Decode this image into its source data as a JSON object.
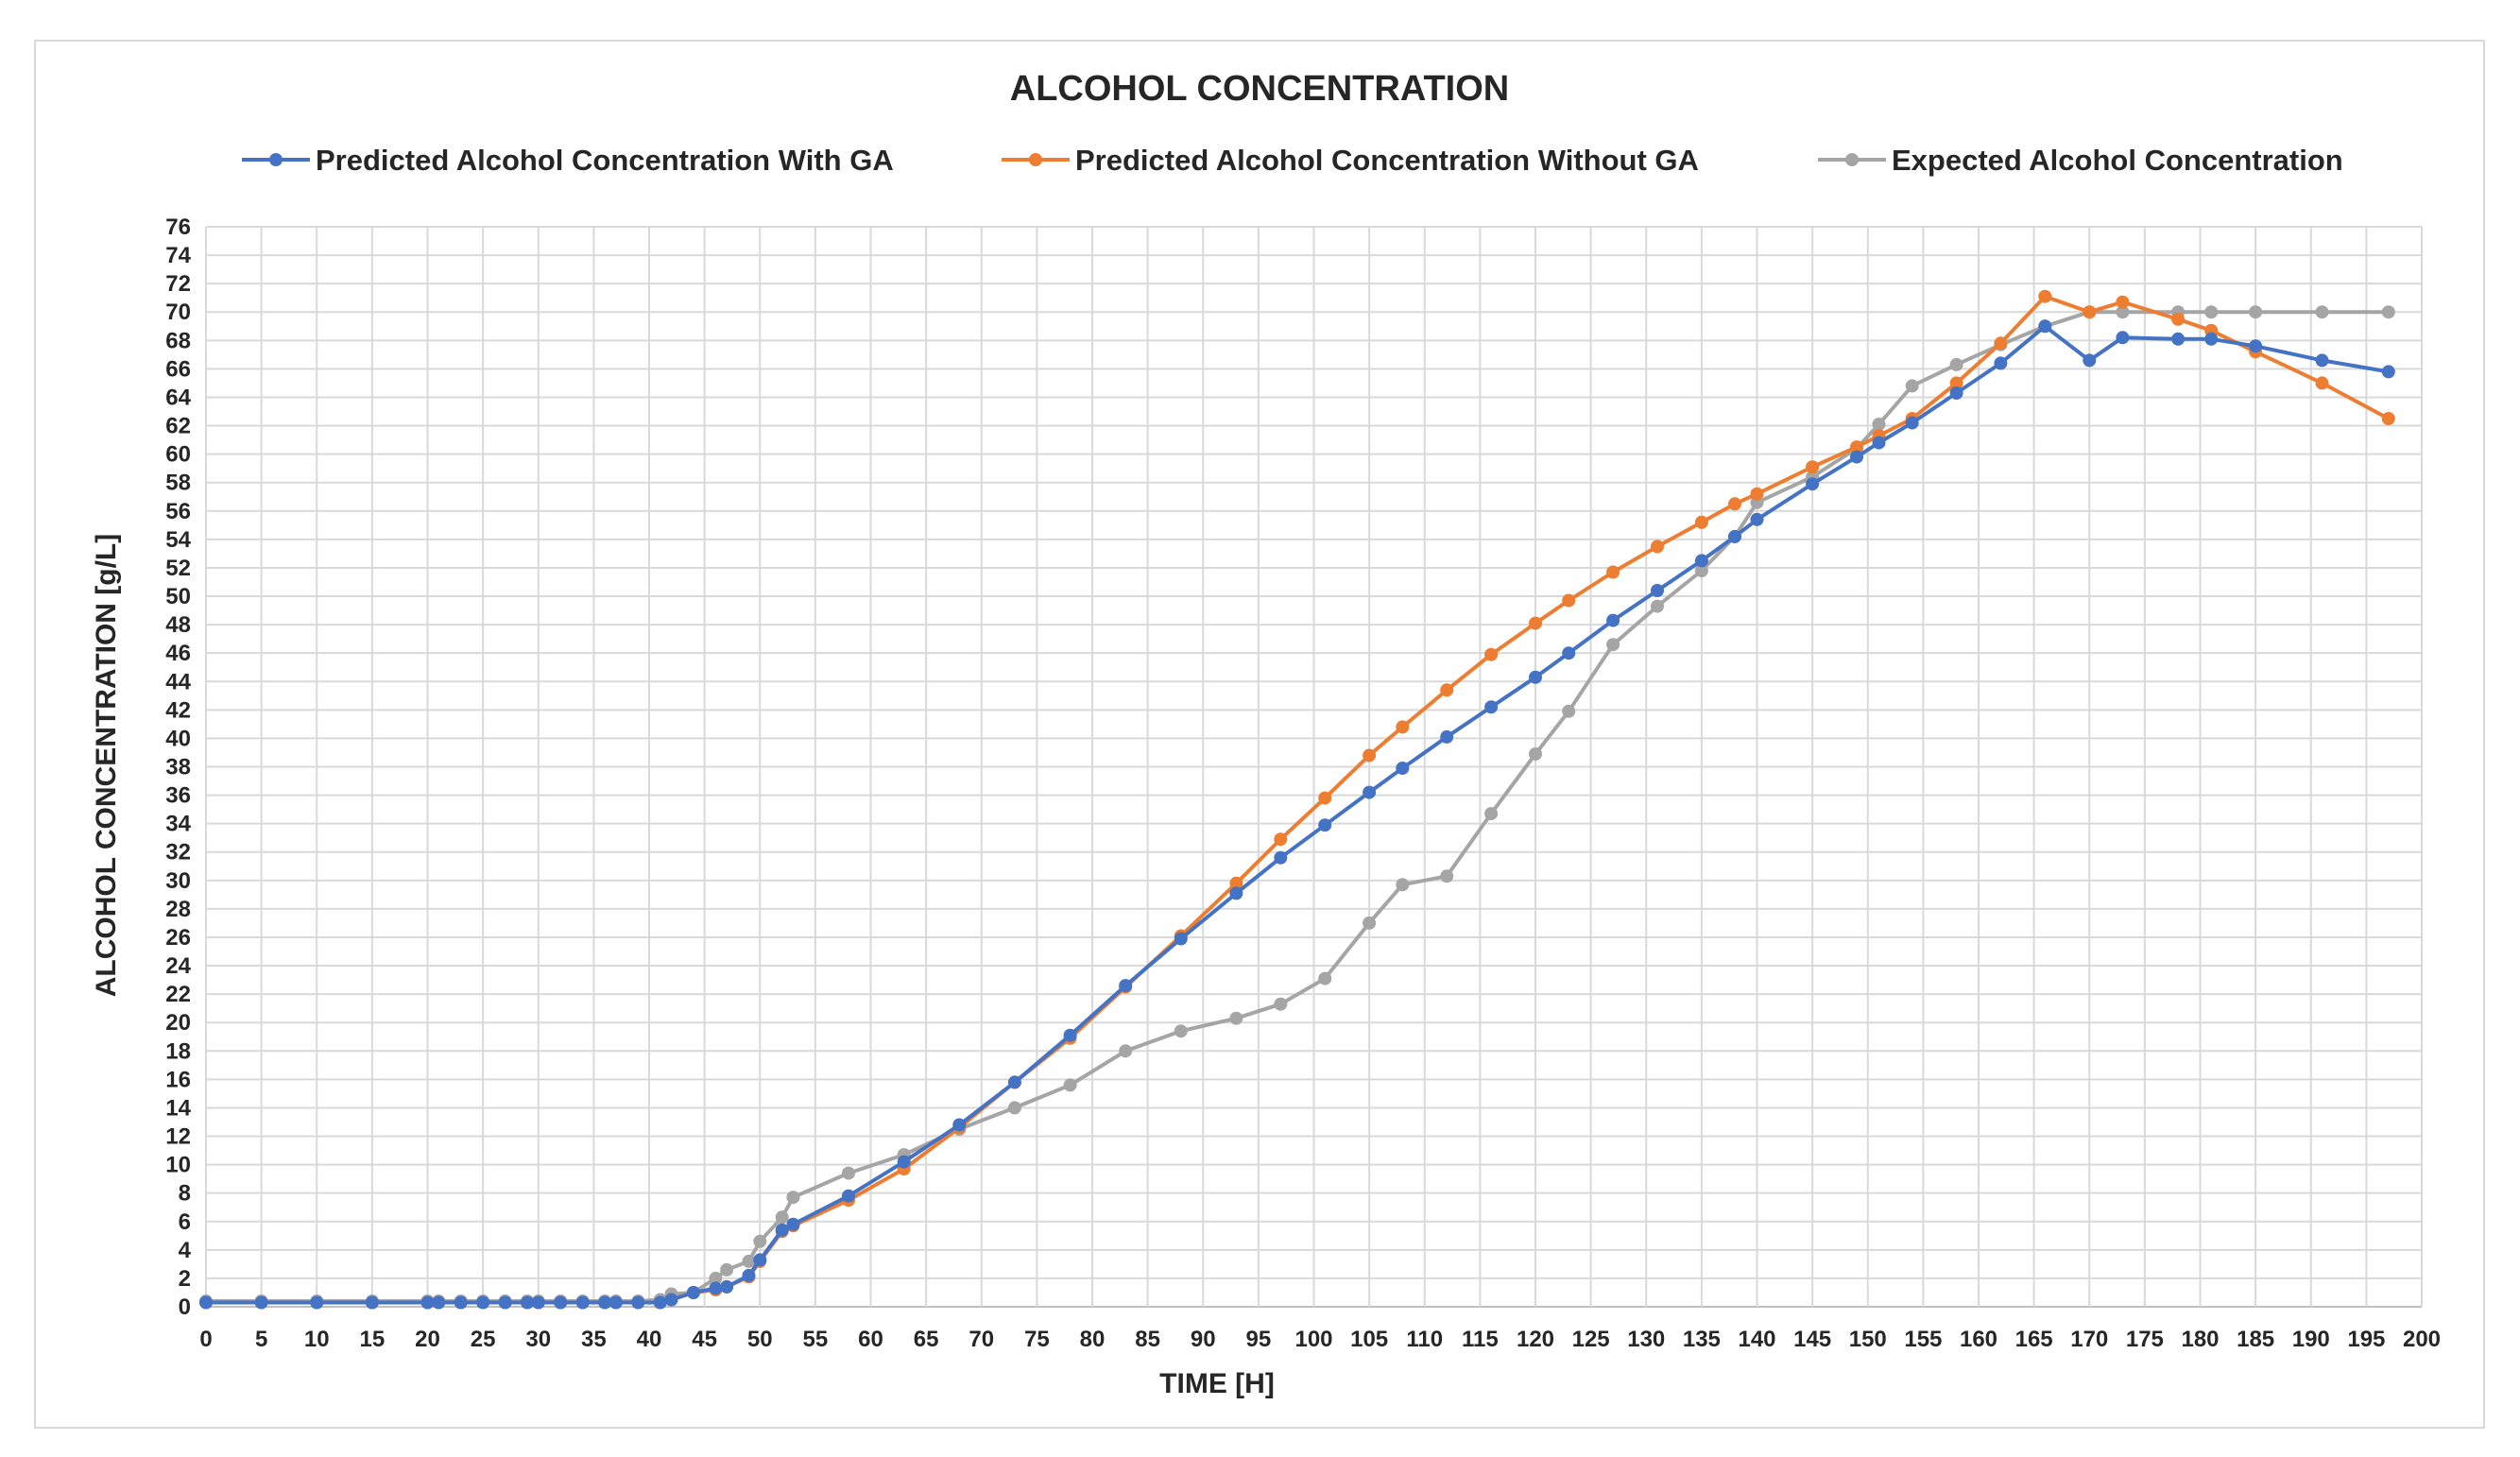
{
  "chart_data": {
    "type": "line",
    "title": "ALCOHOL CONCENTRATION",
    "xlabel": "TIME [H]",
    "ylabel": "ALCOHOL CONCENTRATION [g/L]",
    "xlim": [
      0,
      200
    ],
    "ylim": [
      0,
      76
    ],
    "xticks": [
      0,
      5,
      10,
      15,
      20,
      25,
      30,
      35,
      40,
      45,
      50,
      55,
      60,
      65,
      70,
      75,
      80,
      85,
      90,
      95,
      100,
      105,
      110,
      115,
      120,
      125,
      130,
      135,
      140,
      145,
      150,
      155,
      160,
      165,
      170,
      175,
      180,
      185,
      190,
      195,
      200
    ],
    "yticks": [
      0,
      2,
      4,
      6,
      8,
      10,
      12,
      14,
      16,
      18,
      20,
      22,
      24,
      26,
      28,
      30,
      32,
      34,
      36,
      38,
      40,
      42,
      44,
      46,
      48,
      50,
      52,
      54,
      56,
      58,
      60,
      62,
      64,
      66,
      68,
      70,
      72,
      74,
      76
    ],
    "grid": true,
    "legend_position": "top",
    "series": [
      {
        "name": "Predicted Alcohol Concentration With GA",
        "color": "#4472c4",
        "x": [
          0,
          5,
          10,
          15,
          20,
          21,
          23,
          25,
          27,
          29,
          30,
          32,
          34,
          36,
          37,
          39,
          41,
          42,
          44,
          46,
          47,
          49,
          50,
          52,
          53,
          58,
          63,
          68,
          73,
          78,
          83,
          88,
          93,
          97,
          101,
          105,
          108,
          112,
          116,
          120,
          123,
          127,
          131,
          135,
          138,
          140,
          145,
          149,
          151,
          154,
          158,
          162,
          166,
          170,
          173,
          178,
          181,
          185,
          191,
          197
        ],
        "y": [
          0.3,
          0.3,
          0.3,
          0.3,
          0.3,
          0.3,
          0.3,
          0.3,
          0.3,
          0.3,
          0.3,
          0.3,
          0.3,
          0.3,
          0.3,
          0.3,
          0.3,
          0.5,
          1.0,
          1.3,
          1.4,
          2.2,
          3.3,
          5.4,
          5.8,
          7.8,
          10.2,
          12.8,
          15.8,
          19.1,
          22.6,
          25.9,
          29.1,
          31.6,
          33.9,
          36.2,
          37.9,
          40.1,
          42.2,
          44.3,
          46.0,
          48.3,
          50.4,
          52.5,
          54.2,
          55.4,
          57.9,
          59.8,
          60.8,
          62.2,
          64.3,
          66.4,
          69.0,
          66.6,
          68.2,
          68.1,
          68.1,
          67.6,
          66.6,
          65.8
        ]
      },
      {
        "name": "Predicted Alcohol Concentration Without GA",
        "color": "#ed7d31",
        "x": [
          0,
          5,
          10,
          15,
          20,
          21,
          23,
          25,
          27,
          29,
          30,
          32,
          34,
          36,
          37,
          39,
          41,
          42,
          44,
          46,
          47,
          49,
          50,
          52,
          53,
          58,
          63,
          68,
          73,
          78,
          83,
          88,
          93,
          97,
          101,
          105,
          108,
          112,
          116,
          120,
          123,
          127,
          131,
          135,
          138,
          140,
          145,
          149,
          151,
          154,
          158,
          162,
          166,
          170,
          173,
          178,
          181,
          185,
          191,
          197
        ],
        "y": [
          0.3,
          0.3,
          0.3,
          0.3,
          0.3,
          0.3,
          0.3,
          0.3,
          0.3,
          0.3,
          0.3,
          0.3,
          0.3,
          0.3,
          0.3,
          0.3,
          0.3,
          0.5,
          1.0,
          1.2,
          1.4,
          2.1,
          3.2,
          5.3,
          5.7,
          7.5,
          9.7,
          12.6,
          15.8,
          18.9,
          22.5,
          26.1,
          29.8,
          32.9,
          35.8,
          38.8,
          40.8,
          43.4,
          45.9,
          48.1,
          49.7,
          51.7,
          53.5,
          55.2,
          56.5,
          57.2,
          59.1,
          60.5,
          61.3,
          62.5,
          65.0,
          67.8,
          71.1,
          70.0,
          70.7,
          69.5,
          68.7,
          67.2,
          65.0,
          62.5
        ]
      },
      {
        "name": "Expected Alcohol Concentration",
        "color": "#a5a5a5",
        "x": [
          0,
          5,
          10,
          15,
          20,
          21,
          23,
          25,
          27,
          29,
          30,
          32,
          34,
          36,
          37,
          39,
          41,
          42,
          44,
          46,
          47,
          49,
          50,
          52,
          53,
          58,
          63,
          68,
          73,
          78,
          83,
          88,
          93,
          97,
          101,
          105,
          108,
          112,
          116,
          120,
          123,
          127,
          131,
          135,
          138,
          140,
          145,
          149,
          151,
          154,
          158,
          162,
          166,
          170,
          173,
          178,
          181,
          185,
          191,
          197
        ],
        "y": [
          0.4,
          0.4,
          0.4,
          0.4,
          0.4,
          0.4,
          0.4,
          0.4,
          0.4,
          0.4,
          0.4,
          0.4,
          0.4,
          0.4,
          0.4,
          0.4,
          0.5,
          0.9,
          1.0,
          2.0,
          2.6,
          3.2,
          4.6,
          6.3,
          7.7,
          9.4,
          10.7,
          12.5,
          14.0,
          15.6,
          18.0,
          19.4,
          20.3,
          21.3,
          23.1,
          27.0,
          29.7,
          30.3,
          34.7,
          38.9,
          41.9,
          46.6,
          49.3,
          51.8,
          54.2,
          56.6,
          58.4,
          60.4,
          62.1,
          64.8,
          66.3,
          67.7,
          69.0,
          70.0,
          70.0,
          70.0,
          70.0,
          70.0,
          70.0,
          70.0
        ]
      }
    ]
  }
}
